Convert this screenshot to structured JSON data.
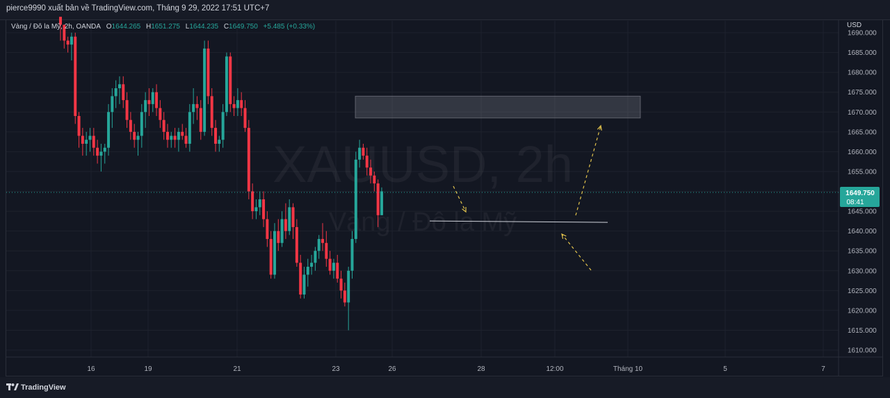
{
  "header": {
    "publisher": "pierce9990 xuất bản về TradingView.com, Tháng 9 29, 2022 17:51 UTC+7"
  },
  "legend": {
    "symbol": "Vàng / Đô la Mỹ, 2h, OANDA",
    "o_label": "O",
    "o_value": "1644.265",
    "h_label": "H",
    "h_value": "1651.275",
    "l_label": "L",
    "l_value": "1644.235",
    "c_label": "C",
    "c_value": "1649.750",
    "change": "+5.485 (+0.33%)"
  },
  "currency": "USD",
  "last_price": {
    "value": "1649.750",
    "countdown": "08:41"
  },
  "watermark": {
    "ticker": "XAUUSD, 2h",
    "name": "Vàng / Đô la Mỹ"
  },
  "footer": {
    "brand": "TradingView"
  },
  "colors": {
    "up": "#26a69a",
    "down": "#f23645",
    "background": "#131722",
    "grid": "#1e222d",
    "annotation": "#e4c44c",
    "zone": "#787b86"
  },
  "chart_data": {
    "type": "candlestick",
    "symbol": "XAUUSD",
    "interval": "2h",
    "ylim": [
      1607,
      1693
    ],
    "y_ticks": [
      1610,
      1615,
      1620,
      1625,
      1630,
      1635,
      1640,
      1645,
      1650,
      1655,
      1660,
      1665,
      1670,
      1675,
      1680,
      1685,
      1690
    ],
    "x_ticks": [
      "16",
      "19",
      "21",
      "23",
      "26",
      "28",
      "12:00",
      "Tháng 10",
      "5",
      "7"
    ],
    "grid": true,
    "candles": [
      [
        1694,
        1694,
        1688,
        1692
      ],
      [
        1692,
        1692,
        1686,
        1688
      ],
      [
        1688,
        1689,
        1685,
        1687
      ],
      [
        1687,
        1690,
        1683,
        1689
      ],
      [
        1689,
        1690,
        1667,
        1669
      ],
      [
        1669,
        1670,
        1661,
        1664
      ],
      [
        1664,
        1666,
        1659,
        1662
      ],
      [
        1662,
        1665,
        1659,
        1663
      ],
      [
        1663,
        1666,
        1660,
        1664
      ],
      [
        1664,
        1666,
        1659,
        1661
      ],
      [
        1661,
        1663,
        1657,
        1659
      ],
      [
        1659,
        1662,
        1655,
        1660
      ],
      [
        1660,
        1662,
        1657,
        1661
      ],
      [
        1661,
        1672,
        1659,
        1670
      ],
      [
        1670,
        1676,
        1666,
        1674
      ],
      [
        1674,
        1678,
        1671,
        1676
      ],
      [
        1676,
        1679,
        1672,
        1677
      ],
      [
        1677,
        1679,
        1671,
        1673
      ],
      [
        1673,
        1675,
        1666,
        1668
      ],
      [
        1668,
        1670,
        1663,
        1665
      ],
      [
        1665,
        1667,
        1661,
        1663
      ],
      [
        1663,
        1665,
        1659,
        1664
      ],
      [
        1664,
        1672,
        1661,
        1670
      ],
      [
        1670,
        1675,
        1666,
        1673
      ],
      [
        1673,
        1676,
        1669,
        1672
      ],
      [
        1672,
        1676,
        1670,
        1675
      ],
      [
        1675,
        1677,
        1669,
        1671
      ],
      [
        1671,
        1673,
        1666,
        1668
      ],
      [
        1668,
        1670,
        1663,
        1665
      ],
      [
        1665,
        1667,
        1661,
        1663
      ],
      [
        1663,
        1665,
        1661,
        1664
      ],
      [
        1664,
        1666,
        1661,
        1663
      ],
      [
        1663,
        1666,
        1660,
        1665
      ],
      [
        1665,
        1667,
        1663,
        1664
      ],
      [
        1664,
        1666,
        1661,
        1662
      ],
      [
        1662,
        1672,
        1660,
        1670
      ],
      [
        1670,
        1676,
        1667,
        1672
      ],
      [
        1672,
        1674,
        1668,
        1671
      ],
      [
        1671,
        1673,
        1663,
        1665
      ],
      [
        1665,
        1688,
        1664,
        1686
      ],
      [
        1686,
        1688,
        1672,
        1674
      ],
      [
        1674,
        1676,
        1664,
        1666
      ],
      [
        1666,
        1668,
        1660,
        1662
      ],
      [
        1662,
        1664,
        1660,
        1663
      ],
      [
        1663,
        1672,
        1661,
        1670
      ],
      [
        1670,
        1685,
        1669,
        1684
      ],
      [
        1684,
        1685,
        1670,
        1672
      ],
      [
        1672,
        1674,
        1669,
        1671
      ],
      [
        1671,
        1676,
        1669,
        1673
      ],
      [
        1673,
        1675,
        1669,
        1671
      ],
      [
        1671,
        1673,
        1665,
        1666
      ],
      [
        1666,
        1668,
        1648,
        1650
      ],
      [
        1650,
        1652,
        1643,
        1645
      ],
      [
        1645,
        1648,
        1643,
        1646
      ],
      [
        1646,
        1650,
        1644,
        1648
      ],
      [
        1648,
        1650,
        1641,
        1643
      ],
      [
        1643,
        1645,
        1636,
        1638
      ],
      [
        1638,
        1640,
        1628,
        1629
      ],
      [
        1629,
        1642,
        1628,
        1640
      ],
      [
        1640,
        1643,
        1635,
        1637
      ],
      [
        1637,
        1645,
        1636,
        1643
      ],
      [
        1643,
        1647,
        1638,
        1640
      ],
      [
        1640,
        1648,
        1639,
        1646
      ],
      [
        1646,
        1647,
        1638,
        1641
      ],
      [
        1641,
        1643,
        1631,
        1632
      ],
      [
        1632,
        1634,
        1623,
        1624
      ],
      [
        1624,
        1631,
        1623,
        1629
      ],
      [
        1629,
        1633,
        1626,
        1631
      ],
      [
        1631,
        1634,
        1629,
        1632
      ],
      [
        1632,
        1636,
        1630,
        1635
      ],
      [
        1635,
        1639,
        1633,
        1638
      ],
      [
        1638,
        1642,
        1635,
        1637
      ],
      [
        1637,
        1640,
        1631,
        1633
      ],
      [
        1633,
        1635,
        1629,
        1630
      ],
      [
        1630,
        1633,
        1628,
        1632
      ],
      [
        1632,
        1634,
        1627,
        1628
      ],
      [
        1628,
        1630,
        1623,
        1625
      ],
      [
        1625,
        1627,
        1621,
        1622
      ],
      [
        1622,
        1631,
        1615,
        1630
      ],
      [
        1630,
        1640,
        1628,
        1638
      ],
      [
        1638,
        1660,
        1637,
        1658
      ],
      [
        1658,
        1663,
        1656,
        1661
      ],
      [
        1661,
        1662,
        1658,
        1659
      ],
      [
        1659,
        1661,
        1654,
        1656
      ],
      [
        1656,
        1658,
        1652,
        1654
      ],
      [
        1654,
        1655,
        1650,
        1652
      ],
      [
        1652,
        1653,
        1641,
        1644
      ],
      [
        1644,
        1651,
        1644,
        1650
      ]
    ],
    "annotations": {
      "resistance_zone": [
        1668.5,
        1674
      ],
      "support_line": 1642.2,
      "last_price_line": 1649.75
    }
  }
}
